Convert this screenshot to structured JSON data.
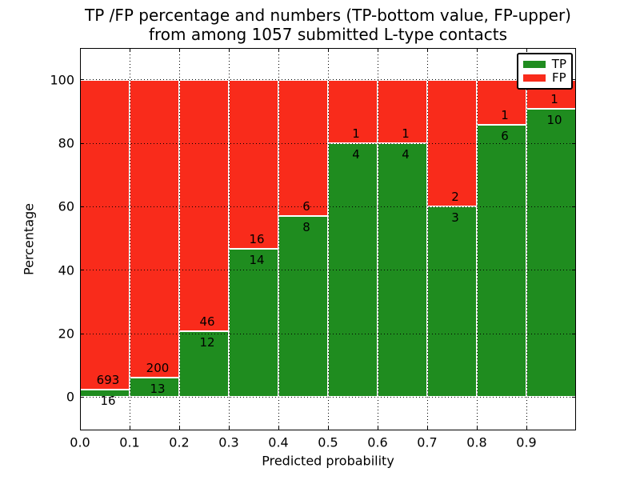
{
  "title": {
    "line1": "TP /FP percentage and numbers (TP-bottom value, FP-upper)",
    "line2": "from among 1057 submitted L-type contacts"
  },
  "legend": {
    "position": "upper right",
    "entries": [
      {
        "label": "TP",
        "color": "#1f8c1f"
      },
      {
        "label": "FP",
        "color": "#f92b1b"
      }
    ]
  },
  "chart_data": {
    "type": "bar",
    "stacked": true,
    "stack_mode": "percentage",
    "title": "TP /FP percentage and numbers (TP-bottom value, FP-upper) from among 1057 submitted L-type contacts",
    "xlabel": "Predicted probability",
    "ylabel": "Percentage",
    "total_contacts": 1057,
    "series": [
      {
        "name": "TP",
        "color": "#1f8c1f"
      },
      {
        "name": "FP",
        "color": "#f92b1b"
      }
    ],
    "bins": [
      {
        "range": [
          0.0,
          0.1
        ],
        "tp": 16,
        "fp": 693
      },
      {
        "range": [
          0.1,
          0.2
        ],
        "tp": 13,
        "fp": 200
      },
      {
        "range": [
          0.2,
          0.3
        ],
        "tp": 12,
        "fp": 46
      },
      {
        "range": [
          0.3,
          0.4
        ],
        "tp": 14,
        "fp": 16
      },
      {
        "range": [
          0.4,
          0.5
        ],
        "tp": 8,
        "fp": 6
      },
      {
        "range": [
          0.5,
          0.6
        ],
        "tp": 4,
        "fp": 1
      },
      {
        "range": [
          0.6,
          0.7
        ],
        "tp": 4,
        "fp": 1
      },
      {
        "range": [
          0.7,
          0.8
        ],
        "tp": 3,
        "fp": 2
      },
      {
        "range": [
          0.8,
          0.9
        ],
        "tp": 6,
        "fp": 1
      },
      {
        "range": [
          0.9,
          1.0
        ],
        "tp": 10,
        "fp": 1
      }
    ],
    "x_tick_labels": [
      "0.0",
      "0.1",
      "0.2",
      "0.3",
      "0.4",
      "0.5",
      "0.6",
      "0.7",
      "0.8",
      "0.9"
    ],
    "y_ticks": [
      0,
      20,
      40,
      60,
      80,
      100
    ],
    "y_tick_labels": [
      "0",
      "20",
      "40",
      "60",
      "80",
      "100"
    ],
    "xlim": [
      0.0,
      1.0
    ],
    "ylim": [
      -10.5,
      110
    ],
    "grid": true,
    "grid_style": "dotted",
    "bar_edge_color": "#ffffff"
  }
}
